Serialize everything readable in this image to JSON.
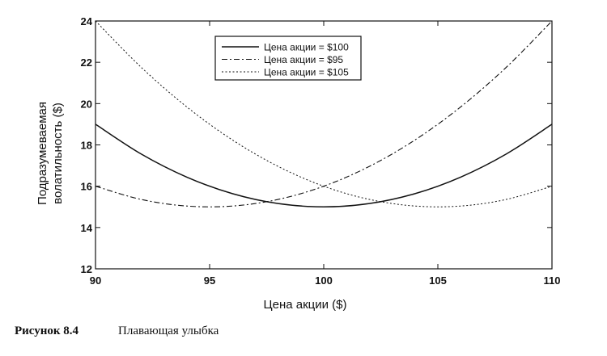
{
  "chart_data": {
    "type": "line",
    "xlabel": "Цена акции ($)",
    "ylabel_lines": [
      "Подразумеваемая",
      "волатильность ($)"
    ],
    "xlim": [
      90,
      110
    ],
    "ylim": [
      12,
      24
    ],
    "xticks": [
      "90",
      "95",
      "100",
      "105",
      "110"
    ],
    "yticks": [
      "12",
      "14",
      "16",
      "18",
      "20",
      "22",
      "24"
    ],
    "legend_position": "top-center",
    "grid": false,
    "series": [
      {
        "name": "Цена акции = $100",
        "style": "solid",
        "x": [
          90,
          92,
          94,
          96,
          98,
          100,
          102,
          104,
          106,
          108,
          110
        ],
        "y": [
          19.0,
          17.56,
          16.44,
          15.64,
          15.16,
          15.0,
          15.16,
          15.64,
          16.44,
          17.56,
          19.0
        ]
      },
      {
        "name": "Цена акции = $95",
        "style": "dashdot",
        "x": [
          90,
          92,
          94,
          96,
          98,
          100,
          102,
          104,
          106,
          108,
          110
        ],
        "y": [
          16.0,
          15.36,
          15.04,
          15.04,
          15.36,
          16.0,
          16.96,
          18.24,
          19.84,
          21.76,
          24.0
        ]
      },
      {
        "name": "Цена акции = $105",
        "style": "dotted",
        "x": [
          90,
          92,
          94,
          96,
          98,
          100,
          102,
          104,
          106,
          108,
          110
        ],
        "y": [
          24.0,
          21.76,
          19.84,
          18.24,
          16.96,
          16.0,
          15.36,
          15.04,
          15.04,
          15.36,
          16.0
        ]
      }
    ]
  },
  "caption": {
    "number": "Рисунок 8.4",
    "text": "Плавающая улыбка"
  }
}
